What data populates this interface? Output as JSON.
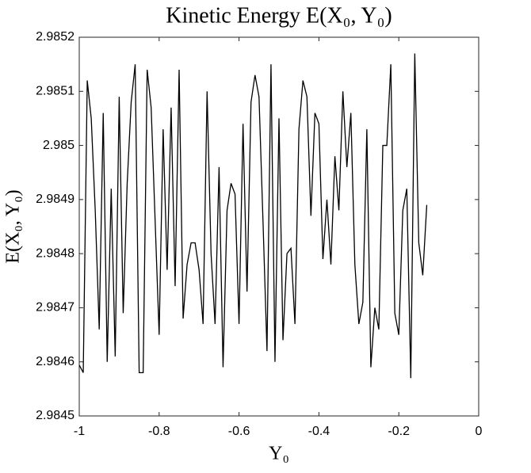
{
  "chart_data": {
    "type": "line",
    "title": "Kinetic Energy E(X₀, Y₀)",
    "x_label": "Y₀",
    "y_label": "E(X₀, Y₀)",
    "x": [
      -1,
      -0.99,
      -0.98,
      -0.97,
      -0.96,
      -0.95,
      -0.94,
      -0.93,
      -0.92,
      -0.91,
      -0.9,
      -0.89,
      -0.88,
      -0.87,
      -0.86,
      -0.85,
      -0.84,
      -0.83,
      -0.82,
      -0.81,
      -0.8,
      -0.79,
      -0.78,
      -0.77,
      -0.76,
      -0.75,
      -0.74,
      -0.73,
      -0.72,
      -0.71,
      -0.7,
      -0.69,
      -0.68,
      -0.67,
      -0.66,
      -0.65,
      -0.64,
      -0.63,
      -0.62,
      -0.61,
      -0.6,
      -0.59,
      -0.58,
      -0.57,
      -0.56,
      -0.55,
      -0.54,
      -0.53,
      -0.52,
      -0.51,
      -0.5,
      -0.49,
      -0.48,
      -0.47,
      -0.46,
      -0.45,
      -0.44,
      -0.43,
      -0.42,
      -0.41,
      -0.4,
      -0.39,
      -0.38,
      -0.37,
      -0.36,
      -0.35,
      -0.34,
      -0.33,
      -0.32,
      -0.31,
      -0.3,
      -0.29,
      -0.28,
      -0.27,
      -0.26,
      -0.25,
      -0.24,
      -0.23,
      -0.22,
      -0.21,
      -0.2,
      -0.19,
      -0.18,
      -0.17,
      -0.16,
      -0.15,
      -0.14,
      -0.13
    ],
    "series": [
      {
        "color": "#000000",
        "values": [
          2.984594,
          2.98458,
          2.98512,
          2.98505,
          2.98488,
          2.98466,
          2.98506,
          2.9846,
          2.98492,
          2.98461,
          2.98509,
          2.98469,
          2.98493,
          2.98508,
          2.98515,
          2.98458,
          2.98458,
          2.98514,
          2.98507,
          2.98486,
          2.98465,
          2.98503,
          2.98477,
          2.98507,
          2.98474,
          2.98514,
          2.98468,
          2.98478,
          2.98482,
          2.98482,
          2.98477,
          2.98467,
          2.9851,
          2.9848,
          2.98467,
          2.98496,
          2.98459,
          2.98488,
          2.98493,
          2.98491,
          2.98467,
          2.98504,
          2.98473,
          2.98508,
          2.98513,
          2.98509,
          2.98486,
          2.98462,
          2.98515,
          2.9846,
          2.98505,
          2.98464,
          2.9848,
          2.98481,
          2.98467,
          2.98503,
          2.98512,
          2.98509,
          2.98487,
          2.98506,
          2.98504,
          2.98479,
          2.9849,
          2.98478,
          2.98498,
          2.98488,
          2.9851,
          2.98496,
          2.98506,
          2.98478,
          2.98467,
          2.98471,
          2.98503,
          2.98459,
          2.9847,
          2.98466,
          2.985,
          2.985,
          2.98515,
          2.98469,
          2.98465,
          2.98488,
          2.98492,
          2.98457,
          2.98517,
          2.98482,
          2.98476,
          2.98489
        ]
      }
    ],
    "xlim": [
      -1,
      0
    ],
    "ylim": [
      2.9845,
      2.9852
    ],
    "xticks": [
      -1,
      -0.8,
      -0.6,
      -0.4,
      -0.2,
      0
    ],
    "yticks": [
      2.9845,
      2.9846,
      2.9847,
      2.9848,
      2.9849,
      2.985,
      2.9851,
      2.9852
    ]
  }
}
